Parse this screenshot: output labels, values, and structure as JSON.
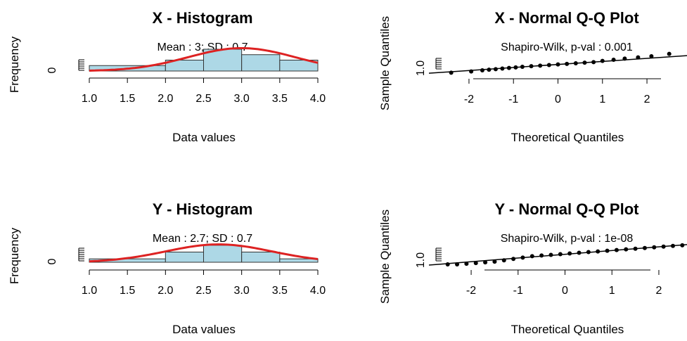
{
  "chart_data": [
    {
      "type": "bar",
      "panel": "x-histogram",
      "title": "X - Histogram",
      "subtitle": "Mean : 3; SD : 0.7",
      "xlabel": "Data values",
      "ylabel": "Frequency",
      "x_ticks": [
        "1.0",
        "1.5",
        "2.0",
        "2.5",
        "3.0",
        "3.5",
        "4.0"
      ],
      "y_ticks": [
        "0"
      ],
      "xlim": [
        1.0,
        4.0
      ],
      "bins": [
        [
          1.0,
          2.0
        ],
        [
          2.0,
          2.5
        ],
        [
          2.5,
          3.0
        ],
        [
          3.0,
          3.5
        ],
        [
          3.5,
          4.0
        ]
      ],
      "values": [
        1,
        2,
        4,
        3,
        2
      ],
      "ylim": [
        0,
        4
      ],
      "density_curve": {
        "mean": 3,
        "sd": 0.7
      },
      "bar_color": "#add8e6",
      "curve_color": "#dd2222"
    },
    {
      "type": "scatter",
      "panel": "x-qq-plot",
      "title": "X - Normal Q-Q Plot",
      "subtitle": "Shapiro-Wilk, p-val : 0.001",
      "xlabel": "Theoretical Quantiles",
      "ylabel": "Sample Quantiles",
      "x_ticks": [
        "-2",
        "-1",
        "0",
        "1",
        "2"
      ],
      "y_ticks": [
        "1.0"
      ],
      "xlim": [
        -2.9,
        2.9
      ],
      "ylim": [
        0.6,
        5.0
      ],
      "x": [
        -2.4,
        -1.95,
        -1.7,
        -1.55,
        -1.4,
        -1.25,
        -1.1,
        -0.95,
        -0.8,
        -0.6,
        -0.4,
        -0.2,
        0.0,
        0.2,
        0.4,
        0.6,
        0.8,
        1.0,
        1.25,
        1.5,
        1.8,
        2.1,
        2.5
      ],
      "y": [
        1.0,
        1.1,
        1.2,
        1.25,
        1.3,
        1.35,
        1.4,
        1.45,
        1.5,
        1.55,
        1.6,
        1.65,
        1.7,
        1.75,
        1.8,
        1.85,
        1.9,
        2.0,
        2.1,
        2.2,
        2.3,
        2.4,
        2.6
      ],
      "reference_line": [
        [
          -2.9,
          0.95
        ],
        [
          2.9,
          2.45
        ]
      ]
    },
    {
      "type": "bar",
      "panel": "y-histogram",
      "title": "Y - Histogram",
      "subtitle": "Mean : 2.7; SD : 0.7",
      "xlabel": "Data values",
      "ylabel": "Frequency",
      "x_ticks": [
        "1.0",
        "1.5",
        "2.0",
        "2.5",
        "3.0",
        "3.5",
        "4.0"
      ],
      "y_ticks": [
        "0"
      ],
      "xlim": [
        1.0,
        4.0
      ],
      "bins": [
        [
          1.0,
          2.0
        ],
        [
          2.0,
          2.5
        ],
        [
          2.5,
          3.0
        ],
        [
          3.0,
          3.5
        ],
        [
          3.5,
          4.0
        ]
      ],
      "values": [
        1,
        3,
        5,
        3,
        1
      ],
      "ylim": [
        0,
        6
      ],
      "density_curve": {
        "mean": 2.7,
        "sd": 0.7
      },
      "bar_color": "#add8e6",
      "curve_color": "#dd2222"
    },
    {
      "type": "scatter",
      "panel": "y-qq-plot",
      "title": "Y - Normal Q-Q Plot",
      "subtitle": "Shapiro-Wilk, p-val : 1e-08",
      "xlabel": "Theoretical Quantiles",
      "ylabel": "Sample Quantiles",
      "x_ticks": [
        "-2",
        "-1",
        "0",
        "1",
        "2"
      ],
      "y_ticks": [
        "1.0"
      ],
      "xlim": [
        -2.9,
        2.6
      ],
      "ylim": [
        0.6,
        5.0
      ],
      "x": [
        -2.5,
        -2.3,
        -2.1,
        -1.9,
        -1.7,
        -1.5,
        -1.3,
        -1.1,
        -0.9,
        -0.7,
        -0.5,
        -0.3,
        -0.1,
        0.1,
        0.3,
        0.5,
        0.7,
        0.9,
        1.1,
        1.3,
        1.5,
        1.7,
        1.9,
        2.1,
        2.3,
        2.5
      ],
      "y": [
        1.0,
        1.0,
        1.05,
        1.1,
        1.15,
        1.2,
        1.3,
        1.4,
        1.5,
        1.6,
        1.65,
        1.7,
        1.75,
        1.8,
        1.85,
        1.9,
        1.95,
        2.0,
        2.05,
        2.1,
        2.15,
        2.2,
        2.25,
        2.3,
        2.35,
        2.4
      ],
      "reference_line": [
        [
          -2.9,
          0.95
        ],
        [
          2.6,
          2.45
        ]
      ]
    }
  ]
}
